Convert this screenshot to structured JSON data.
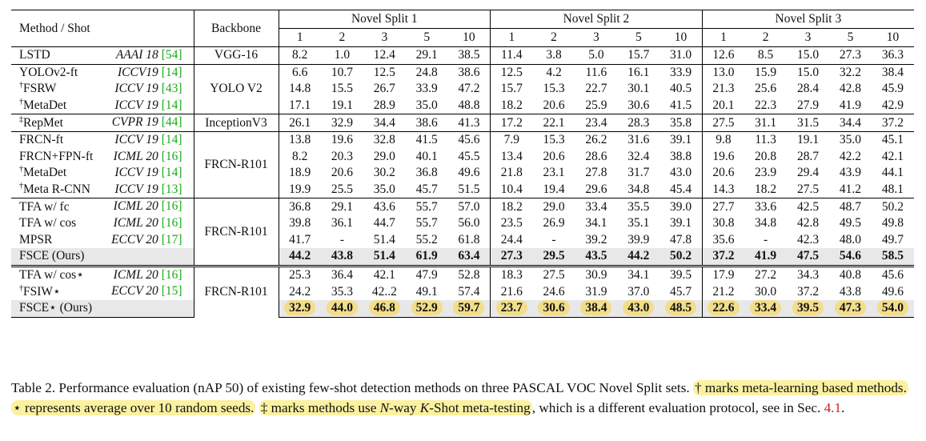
{
  "table": {
    "header": {
      "method_shot": "Method / Shot",
      "backbone": "Backbone",
      "splits": [
        "Novel Split 1",
        "Novel Split 2",
        "Novel Split 3"
      ],
      "shots": [
        "1",
        "2",
        "3",
        "5",
        "10"
      ]
    },
    "groups": [
      {
        "backbone": "VGG-16",
        "rows": [
          {
            "mark": "",
            "method": "LSTD",
            "venue": "AAAI 18",
            "ref": "[54]",
            "values": [
              "8.2",
              "1.0",
              "12.4",
              "29.1",
              "38.5",
              "11.4",
              "3.8",
              "5.0",
              "15.7",
              "31.0",
              "12.6",
              "8.5",
              "15.0",
              "27.3",
              "36.3"
            ]
          }
        ]
      },
      {
        "backbone": "YOLO V2",
        "rows": [
          {
            "mark": "",
            "method": "YOLOv2-ft",
            "venue": "ICCV19",
            "ref": "[14]",
            "values": [
              "6.6",
              "10.7",
              "12.5",
              "24.8",
              "38.6",
              "12.5",
              "4.2",
              "11.6",
              "16.1",
              "33.9",
              "13.0",
              "15.9",
              "15.0",
              "32.2",
              "38.4"
            ]
          },
          {
            "mark": "†",
            "method": "FSRW",
            "venue": "ICCV 19",
            "ref": "[43]",
            "values": [
              "14.8",
              "15.5",
              "26.7",
              "33.9",
              "47.2",
              "15.7",
              "15.3",
              "22.7",
              "30.1",
              "40.5",
              "21.3",
              "25.6",
              "28.4",
              "42.8",
              "45.9"
            ]
          },
          {
            "mark": "†",
            "method": "MetaDet",
            "venue": "ICCV 19",
            "ref": "[14]",
            "values": [
              "17.1",
              "19.1",
              "28.9",
              "35.0",
              "48.8",
              "18.2",
              "20.6",
              "25.9",
              "30.6",
              "41.5",
              "20.1",
              "22.3",
              "27.9",
              "41.9",
              "42.9"
            ]
          }
        ]
      },
      {
        "backbone": "InceptionV3",
        "rows": [
          {
            "mark": "‡",
            "method": "RepMet",
            "venue": "CVPR 19",
            "ref": "[44]",
            "values": [
              "26.1",
              "32.9",
              "34.4",
              "38.6",
              "41.3",
              "17.2",
              "22.1",
              "23.4",
              "28.3",
              "35.8",
              "27.5",
              "31.1",
              "31.5",
              "34.4",
              "37.2"
            ]
          }
        ]
      },
      {
        "backbone": "FRCN-R101",
        "rows": [
          {
            "mark": "",
            "method": "FRCN-ft",
            "venue": "ICCV 19",
            "ref": "[14]",
            "values": [
              "13.8",
              "19.6",
              "32.8",
              "41.5",
              "45.6",
              "7.9",
              "15.3",
              "26.2",
              "31.6",
              "39.1",
              "9.8",
              "11.3",
              "19.1",
              "35.0",
              "45.1"
            ]
          },
          {
            "mark": "",
            "method": "FRCN+FPN-ft",
            "venue": "ICML 20",
            "ref": "[16]",
            "values": [
              "8.2",
              "20.3",
              "29.0",
              "40.1",
              "45.5",
              "13.4",
              "20.6",
              "28.6",
              "32.4",
              "38.8",
              "19.6",
              "20.8",
              "28.7",
              "42.2",
              "42.1"
            ]
          },
          {
            "mark": "†",
            "method": "MetaDet",
            "venue": "ICCV 19",
            "ref": "[14]",
            "values": [
              "18.9",
              "20.6",
              "30.2",
              "36.8",
              "49.6",
              "21.8",
              "23.1",
              "27.8",
              "31.7",
              "43.0",
              "20.6",
              "23.9",
              "29.4",
              "43.9",
              "44.1"
            ]
          },
          {
            "mark": "†",
            "method": "Meta R-CNN",
            "venue": "ICCV 19",
            "ref": "[13]",
            "values": [
              "19.9",
              "25.5",
              "35.0",
              "45.7",
              "51.5",
              "10.4",
              "19.4",
              "29.6",
              "34.8",
              "45.4",
              "14.3",
              "18.2",
              "27.5",
              "41.2",
              "48.1"
            ]
          }
        ]
      },
      {
        "backbone": "FRCN-R101",
        "rows": [
          {
            "mark": "",
            "method": "TFA w/ fc",
            "venue": "ICML 20",
            "ref": "[16]",
            "values": [
              "36.8",
              "29.1",
              "43.6",
              "55.7",
              "57.0",
              "18.2",
              "29.0",
              "33.4",
              "35.5",
              "39.0",
              "27.7",
              "33.6",
              "42.5",
              "48.7",
              "50.2"
            ]
          },
          {
            "mark": "",
            "method": "TFA w/ cos",
            "venue": "ICML 20",
            "ref": "[16]",
            "values": [
              "39.8",
              "36.1",
              "44.7",
              "55.7",
              "56.0",
              "23.5",
              "26.9",
              "34.1",
              "35.1",
              "39.1",
              "30.8",
              "34.8",
              "42.8",
              "49.5",
              "49.8"
            ]
          },
          {
            "mark": "",
            "method": "MPSR",
            "venue": "ECCV 20",
            "ref": "[17]",
            "values": [
              "41.7",
              "-",
              "51.4",
              "55.2",
              "61.8",
              "24.4",
              "-",
              "39.2",
              "39.9",
              "47.8",
              "35.6",
              "-",
              "42.3",
              "48.0",
              "49.7"
            ]
          }
        ],
        "ours": {
          "method": "FSCE (Ours)",
          "values": [
            "44.2",
            "43.8",
            "51.4",
            "61.9",
            "63.4",
            "27.3",
            "29.5",
            "43.5",
            "44.2",
            "50.2",
            "37.2",
            "41.9",
            "47.5",
            "54.6",
            "58.5"
          ]
        }
      },
      {
        "backbone": "FRCN-R101",
        "rows": [
          {
            "mark": "",
            "method": "TFA w/ cos⋆",
            "venue": "ICML 20",
            "ref": "[16]",
            "values": [
              "25.3",
              "36.4",
              "42.1",
              "47.9",
              "52.8",
              "18.3",
              "27.5",
              "30.9",
              "34.1",
              "39.5",
              "17.9",
              "27.2",
              "34.3",
              "40.8",
              "45.6"
            ]
          },
          {
            "mark": "†",
            "method": "FSIW⋆",
            "venue": "ECCV 20",
            "ref": "[15]",
            "values": [
              "24.2",
              "35.3",
              "42..2",
              "49.1",
              "57.4",
              "21.6",
              "24.6",
              "31.9",
              "37.0",
              "45.7",
              "21.2",
              "30.0",
              "37.2",
              "43.8",
              "49.6"
            ]
          }
        ],
        "ours": {
          "method": "FSCE⋆ (Ours)",
          "values": [
            "32.9",
            "44.0",
            "46.8",
            "52.9",
            "59.7",
            "23.7",
            "30.6",
            "38.4",
            "43.0",
            "48.5",
            "22.6",
            "33.4",
            "39.5",
            "47.3",
            "54.0"
          ]
        }
      }
    ]
  },
  "caption": {
    "p1": "Table 2. Performance evaluation (nAP 50) of existing few-shot detection methods on three PASCAL VOC Novel Split sets. ",
    "h1": "† marks meta-learning based methods.",
    "h2": "⋆ represents average over 10 random seeds.",
    "h3a": "‡ marks methods use ",
    "h3n": "N",
    "h3b": "-way ",
    "h3k": "K",
    "h3c": "-Shot meta-testing",
    "p2": ", which is a different evaluation protocol, see in Sec. ",
    "sec": "4.1",
    "p3": "."
  },
  "colors": {
    "highlight": "#fbf1a0",
    "pill": "#f2dd8a",
    "ours_row": "#e8e8e8",
    "ref_green": "#1aaa1a",
    "ref_red": "#d02020"
  }
}
